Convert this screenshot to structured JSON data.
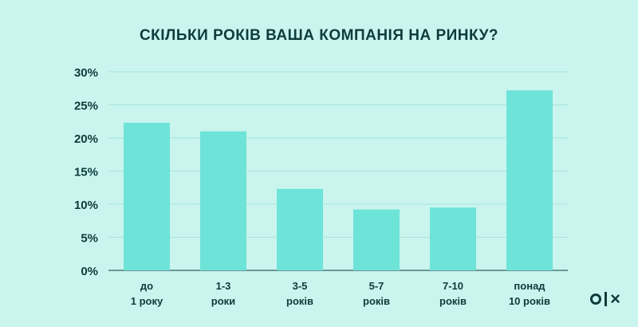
{
  "chart_data": {
    "type": "bar",
    "title": "СКІЛЬКИ РОКІВ ВАША КОМПАНІЯ НА РИНКУ?",
    "categories": [
      [
        "до",
        "1 року"
      ],
      [
        "1-3",
        "роки"
      ],
      [
        "3-5",
        "років"
      ],
      [
        "5-7",
        "років"
      ],
      [
        "7-10",
        "років"
      ],
      [
        "понад",
        "10 років"
      ]
    ],
    "values": [
      22.3,
      21.0,
      12.3,
      9.2,
      9.5,
      27.2
    ],
    "ylim": [
      0,
      30
    ],
    "yticks": [
      "0%",
      "5%",
      "10%",
      "15%",
      "20%",
      "25%",
      "30%"
    ],
    "grid": true,
    "bar_color": "#6ee3d8",
    "text_color": "#0e3b3c",
    "grid_color": "#a8e4db"
  },
  "brand": {
    "logo_icon": "olx-logo-icon"
  }
}
